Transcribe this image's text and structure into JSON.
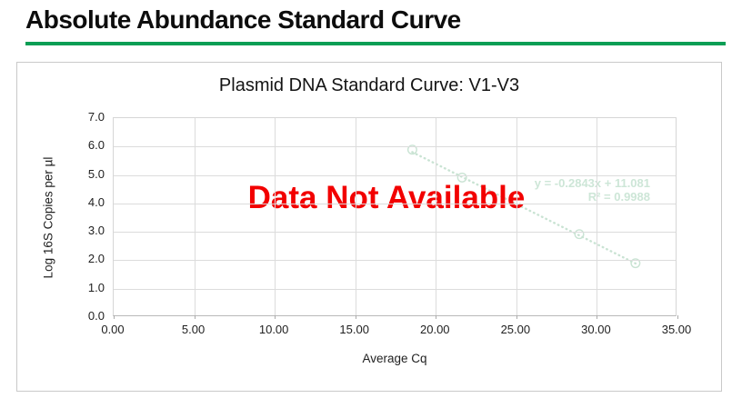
{
  "page": {
    "heading": "Absolute Abundance Standard Curve"
  },
  "chart": {
    "title": "Plasmid DNA Standard Curve: V1-V3",
    "overlay_message": "Data Not Available",
    "equation_line1": "y = -0.2843x + 11.081",
    "equation_line2": "R² = 0.9988"
  },
  "colors": {
    "heading_rule_green": "#0a9e55",
    "overlay_red": "#f20000",
    "trend_pale_green": "#c9e3d3",
    "gridline_gray": "#dcdcdc"
  },
  "chart_data": {
    "type": "scatter",
    "title": "Plasmid DNA Standard Curve: V1-V3",
    "xlabel": "Average Cq",
    "ylabel": "Log 16S Copies per µl",
    "xlim": [
      0,
      35
    ],
    "ylim": [
      0,
      7
    ],
    "grid": true,
    "x_ticks": [
      {
        "value": 0,
        "label": "0.00"
      },
      {
        "value": 5,
        "label": "5.00"
      },
      {
        "value": 10,
        "label": "10.00"
      },
      {
        "value": 15,
        "label": "15.00"
      },
      {
        "value": 20,
        "label": "20.00"
      },
      {
        "value": 25,
        "label": "25.00"
      },
      {
        "value": 30,
        "label": "30.00"
      },
      {
        "value": 35,
        "label": "35.00"
      }
    ],
    "y_ticks": [
      {
        "value": 0,
        "label": "0.0"
      },
      {
        "value": 1,
        "label": "1.0"
      },
      {
        "value": 2,
        "label": "2.0"
      },
      {
        "value": 3,
        "label": "3.0"
      },
      {
        "value": 4,
        "label": "4.0"
      },
      {
        "value": 5,
        "label": "5.0"
      },
      {
        "value": 6,
        "label": "6.0"
      },
      {
        "value": 7,
        "label": "7.0"
      }
    ],
    "points": [
      {
        "x": 18.6,
        "y": 5.88
      },
      {
        "x": 21.7,
        "y": 4.89
      },
      {
        "x": 29.0,
        "y": 2.88
      },
      {
        "x": 32.5,
        "y": 1.85
      }
    ],
    "trendline": {
      "equation": "y = -0.2843x + 11.081",
      "r_squared_text": "R² = 0.9988",
      "slope": -0.2843,
      "intercept": 11.081,
      "style": "dotted",
      "x_start": 18.6,
      "x_end": 32.5
    },
    "annotation": "Data Not Available",
    "legend": null
  }
}
